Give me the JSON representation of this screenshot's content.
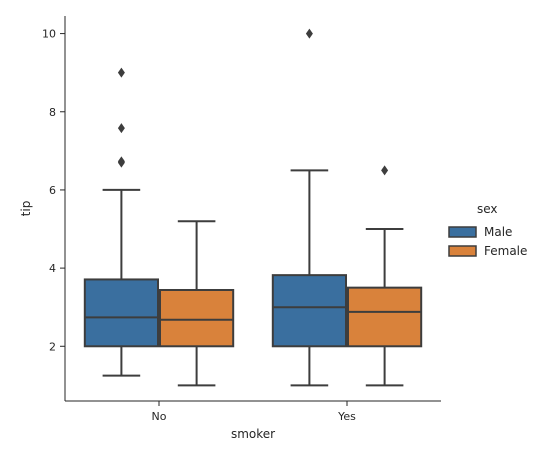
{
  "chart_data": {
    "type": "box",
    "xlabel": "smoker",
    "ylabel": "tip",
    "categories": [
      "No",
      "Yes"
    ],
    "ylim": [
      0.6,
      10.45
    ],
    "yticks": [
      2,
      4,
      6,
      8,
      10
    ],
    "legend": {
      "title": "sex",
      "placement": "right",
      "entries": [
        "Male",
        "Female"
      ]
    },
    "series": [
      {
        "name": "Male",
        "color": "#3a6f9f",
        "boxes": [
          {
            "category": "No",
            "whisker_low": 1.25,
            "q1": 2.0,
            "median": 2.74,
            "q3": 3.71,
            "whisker_high": 6.0,
            "outliers": [
              6.7,
              6.73,
              7.58,
              9.0
            ]
          },
          {
            "category": "Yes",
            "whisker_low": 1.0,
            "q1": 2.0,
            "median": 3.0,
            "q3": 3.82,
            "whisker_high": 6.5,
            "outliers": [
              10.0
            ]
          }
        ]
      },
      {
        "name": "Female",
        "color": "#d9823b",
        "boxes": [
          {
            "category": "No",
            "whisker_low": 1.0,
            "q1": 2.0,
            "median": 2.68,
            "q3": 3.44,
            "whisker_high": 5.2,
            "outliers": []
          },
          {
            "category": "Yes",
            "whisker_low": 1.0,
            "q1": 2.0,
            "median": 2.88,
            "q3": 3.5,
            "whisker_high": 5.0,
            "outliers": [
              6.5
            ]
          }
        ]
      }
    ],
    "grid": false
  }
}
